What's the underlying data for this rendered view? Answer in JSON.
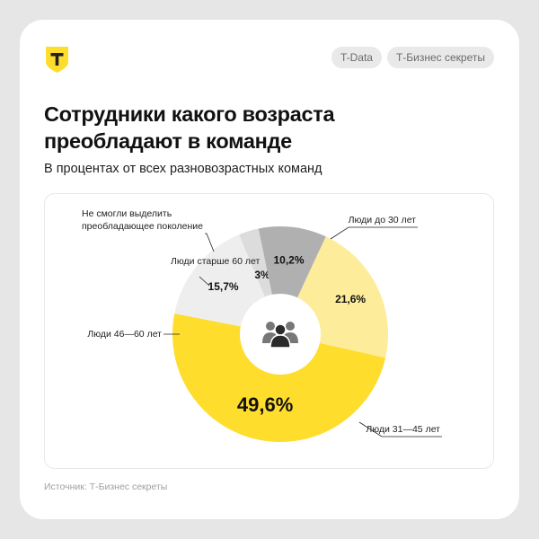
{
  "brand": {
    "logo_letter": "Т",
    "logo_color": "#ffdd2d",
    "tags": [
      "T-Data",
      "Т-Бизнес секреты"
    ]
  },
  "header": {
    "title": "Сотрудники какого возраста преобладают в команде",
    "subtitle": "В процентах от всех разновозрастных команд"
  },
  "footer": {
    "source": "Источник: Т-Бизнес секреты"
  },
  "chart_data": {
    "type": "pie",
    "variant": "donut",
    "center_icon": "people-group-icon",
    "slices": [
      {
        "name": "Люди до 30 лет",
        "value": 21.6,
        "label": "21,6%",
        "color": "#fdec9a"
      },
      {
        "name": "Люди 31—45 лет",
        "value": 49.6,
        "label": "49,6%",
        "color": "#ffdd2d"
      },
      {
        "name": "Люди 46—60 лет",
        "value": 15.7,
        "label": "15,7%",
        "color": "#eeeeee"
      },
      {
        "name": "Люди старше 60 лет",
        "value": 3,
        "label": "3%",
        "color": "#dcdcdc"
      },
      {
        "name": "Не смогли выделить преобладающее поколение",
        "value": 10.2,
        "label": "10,2%",
        "color": "#b0b0b0"
      }
    ]
  }
}
